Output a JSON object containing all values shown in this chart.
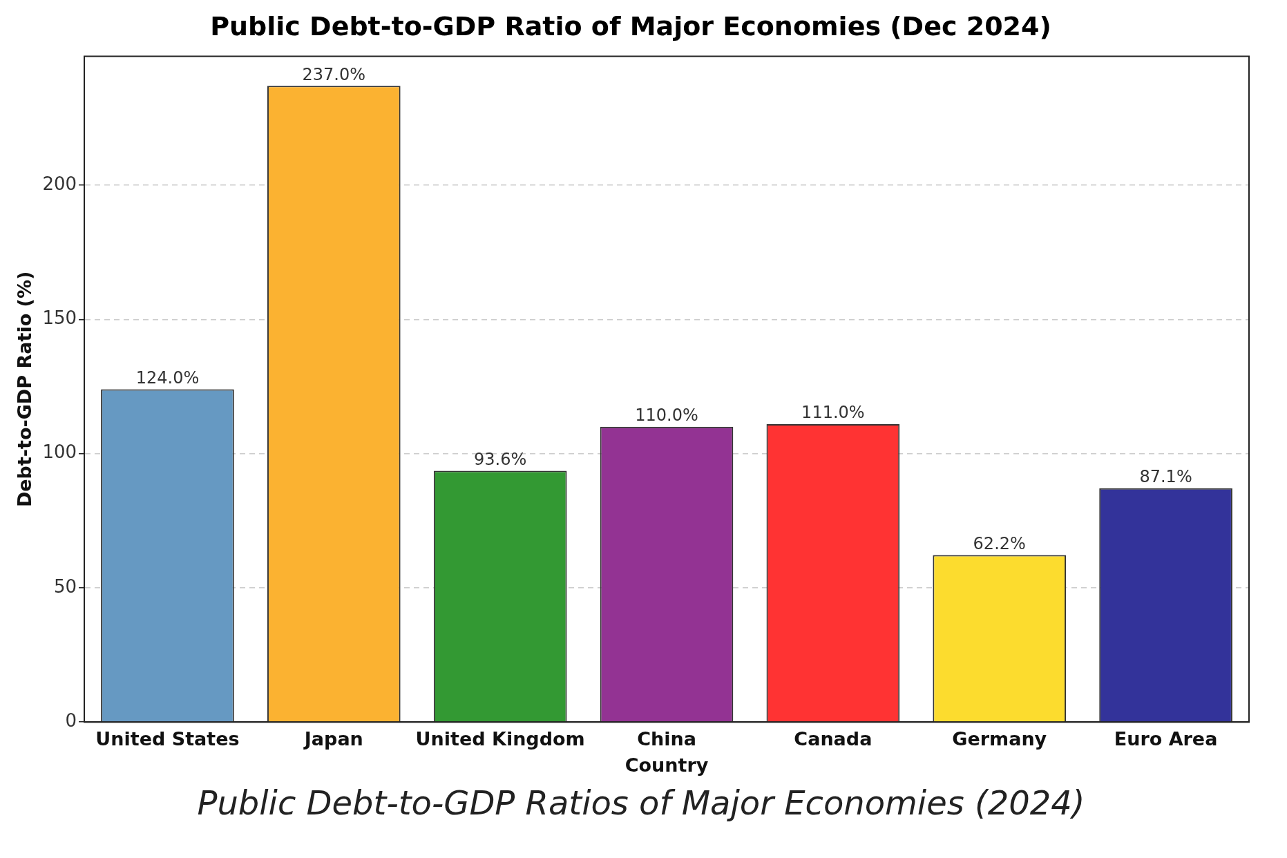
{
  "chart_data": {
    "type": "bar",
    "title": "Public Debt-to-GDP Ratio of Major Economies (Dec 2024)",
    "xlabel": "Country",
    "ylabel": "Debt-to-GDP Ratio (%)",
    "categories": [
      "United States",
      "Japan",
      "United Kingdom",
      "China",
      "Canada",
      "Germany",
      "Euro Area"
    ],
    "values": [
      124.0,
      237.0,
      93.6,
      110.0,
      111.0,
      62.2,
      87.1
    ],
    "colors": [
      "#6699c2",
      "#fbb231",
      "#339933",
      "#933393",
      "#ff3333",
      "#fcdc2e",
      "#33339a"
    ],
    "value_labels": [
      "124.0%",
      "237.0%",
      "93.6%",
      "110.0%",
      "111.0%",
      "62.2%",
      "87.1%"
    ],
    "ylim": [
      0,
      248
    ],
    "yticks": [
      0,
      50,
      100,
      150,
      200
    ],
    "grid": "y",
    "annotations": [
      "Public Debt-to-GDP Ratios of Major Economies (2024)"
    ]
  }
}
